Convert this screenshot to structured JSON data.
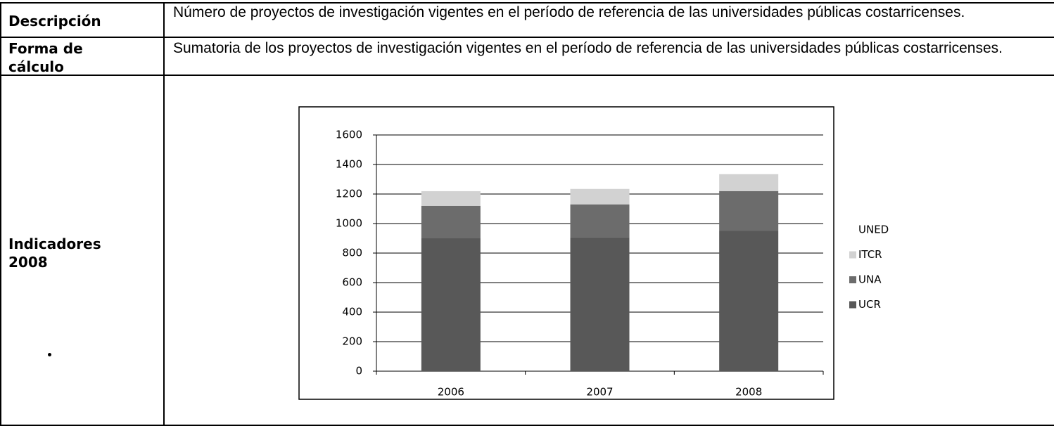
{
  "table": {
    "rows": [
      [
        "Descripción",
        "Número de proyectos de investigación vigentes en el período de referencia de las universidades públicas costarricenses."
      ],
      [
        "Forma de cálculo",
        "Sumatoria de los proyectos de investigación vigentes en el período de referencia de las universidades públicas costarricenses."
      ],
      [
        "Indicadores 2008"
      ]
    ]
  },
  "chart_data": {
    "type": "bar",
    "stacked": true,
    "categories": [
      "2006",
      "2007",
      "2008"
    ],
    "series": [
      {
        "name": "UCR",
        "color": "#585858",
        "values": [
          900,
          905,
          950
        ]
      },
      {
        "name": "UNA",
        "color": "#6c6c6c",
        "values": [
          220,
          225,
          270
        ]
      },
      {
        "name": "ITCR",
        "color": "#d2d2d2",
        "values": [
          100,
          105,
          115
        ]
      },
      {
        "name": "UNED",
        "color": "#ffffff",
        "values": [
          5,
          5,
          5
        ]
      }
    ],
    "ylim": [
      0,
      1600
    ],
    "yticks": [
      0,
      200,
      400,
      600,
      800,
      1000,
      1200,
      1400,
      1600
    ],
    "grid": true,
    "legend": "right"
  }
}
